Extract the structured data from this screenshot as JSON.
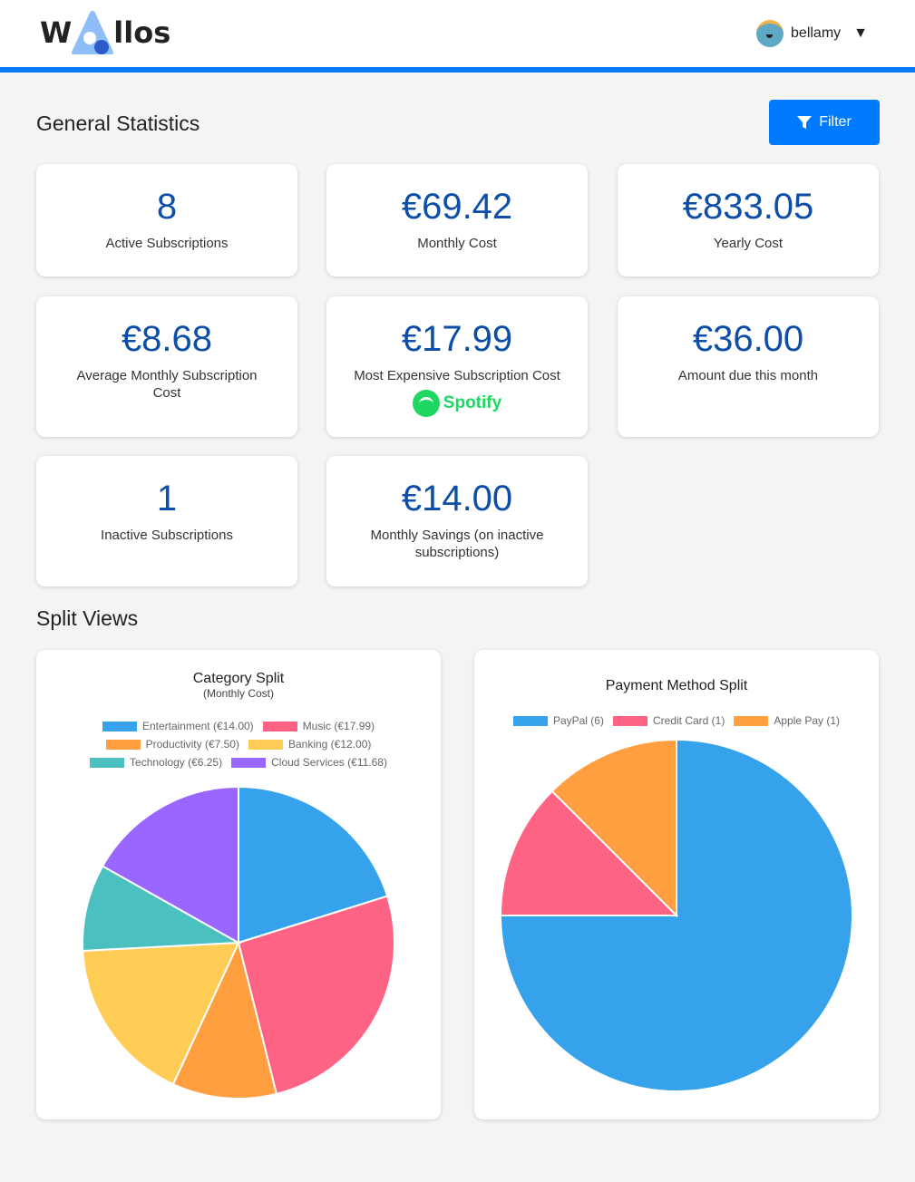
{
  "header": {
    "logo_text_left": "W",
    "logo_text_right": "llos",
    "username": "bellamy",
    "dropdown_arrow": "▼"
  },
  "general": {
    "title": "General Statistics",
    "filter_label": "Filter"
  },
  "stats": [
    {
      "value": "8",
      "label": "Active Subscriptions"
    },
    {
      "value": "€69.42",
      "label": "Monthly Cost"
    },
    {
      "value": "€833.05",
      "label": "Yearly Cost"
    },
    {
      "value": "€8.68",
      "label": "Average Monthly Subscription Cost"
    },
    {
      "value": "€17.99",
      "label": "Most Expensive Subscription Cost",
      "logo": "Spotify"
    },
    {
      "value": "€36.00",
      "label": "Amount due this month"
    },
    {
      "value": "1",
      "label": "Inactive Subscriptions"
    },
    {
      "value": "€14.00",
      "label": "Monthly Savings (on inactive subscriptions)"
    }
  ],
  "split": {
    "title": "Split Views"
  },
  "chart_data": [
    {
      "type": "pie",
      "title": "Category Split",
      "subtitle": "(Monthly Cost)",
      "legend": "top",
      "categories": [
        "Entertainment (€14.00)",
        "Music (€17.99)",
        "Productivity (€7.50)",
        "Banking (€12.00)",
        "Technology (€6.25)",
        "Cloud Services (€11.68)"
      ],
      "values": [
        14.0,
        17.99,
        7.5,
        12.0,
        6.25,
        11.68
      ],
      "colors": [
        "#36a2eb",
        "#ff6384",
        "#ff9f40",
        "#ffcd56",
        "#4bc0c0",
        "#9966ff"
      ]
    },
    {
      "type": "pie",
      "title": "Payment Method Split",
      "legend": "top",
      "categories": [
        "PayPal (6)",
        "Credit Card (1)",
        "Apple Pay (1)"
      ],
      "values": [
        6,
        1,
        1
      ],
      "colors": [
        "#36a2eb",
        "#ff6384",
        "#ff9f40"
      ]
    }
  ]
}
